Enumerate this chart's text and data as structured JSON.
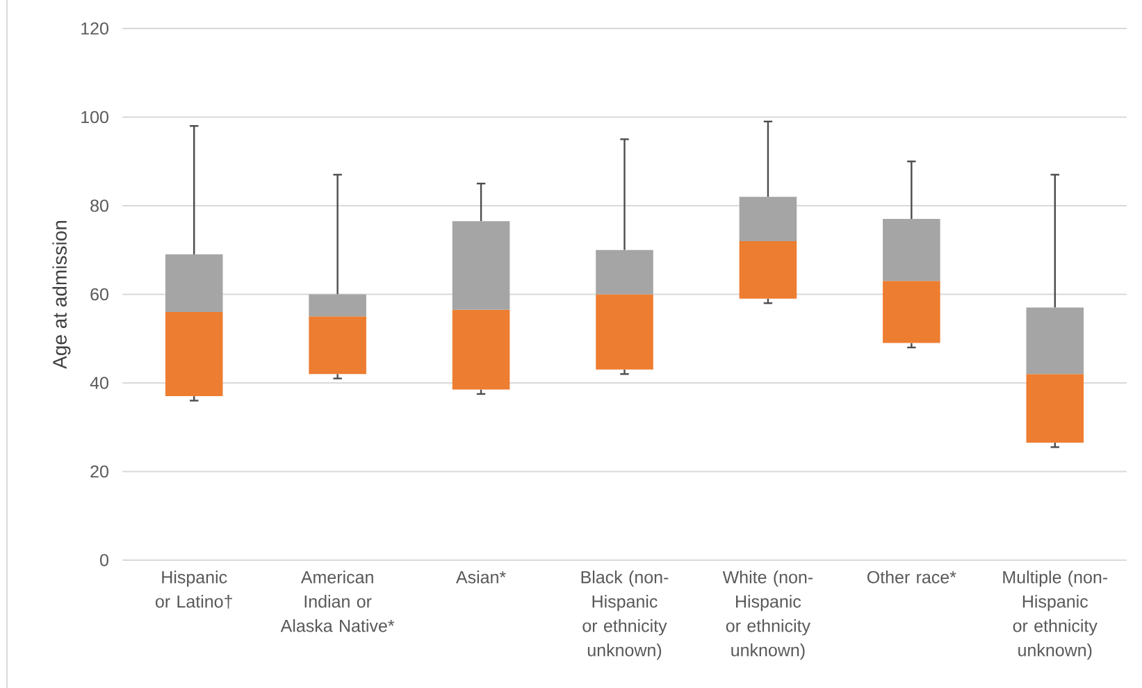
{
  "chart_data": {
    "type": "box",
    "ylabel": "Age at admission",
    "categories": [
      "Hispanic or Latino†",
      "American Indian or Alaska Native*",
      "Asian*",
      "Black (non-Hispanic or ethnicity unknown)",
      "White (non-Hispanic or ethnicity unknown)",
      "Other race*",
      "Multiple (non-Hispanic or ethnicity unknown)"
    ],
    "colors": [
      [
        "#ed7d31",
        "#a5a5a5"
      ],
      [
        "#ed7d31",
        "#a5a5a5"
      ],
      [
        "#ed7d31",
        "#a5a5a5"
      ],
      [
        "#ed7d31",
        "#a5a5a5"
      ],
      [
        "#ed7d31",
        "#a5a5a5"
      ],
      [
        "#ed7d31",
        "#a5a5a5"
      ],
      [
        "#ed7d31",
        "#a5a5a5"
      ]
    ],
    "boxes": [
      {
        "low": 36,
        "q1": 37,
        "median": 56,
        "q3": 69,
        "high": 98
      },
      {
        "low": 41,
        "q1": 42,
        "median": 55,
        "q3": 60,
        "high": 87
      },
      {
        "low": 37.5,
        "q1": 38.5,
        "median": 56.5,
        "q3": 76.5,
        "high": 85
      },
      {
        "low": 42,
        "q1": 43,
        "median": 60,
        "q3": 70,
        "high": 95
      },
      {
        "low": 58,
        "q1": 59,
        "median": 72,
        "q3": 82,
        "high": 99
      },
      {
        "low": 48,
        "q1": 49,
        "median": 63,
        "q3": 77,
        "high": 90
      },
      {
        "low": 25.5,
        "q1": 26.5,
        "median": 42,
        "q3": 57,
        "high": 87
      }
    ],
    "ylim": [
      0,
      120
    ],
    "yticks": [
      0,
      20,
      40,
      60,
      80,
      100,
      120
    ],
    "grid": "y"
  }
}
